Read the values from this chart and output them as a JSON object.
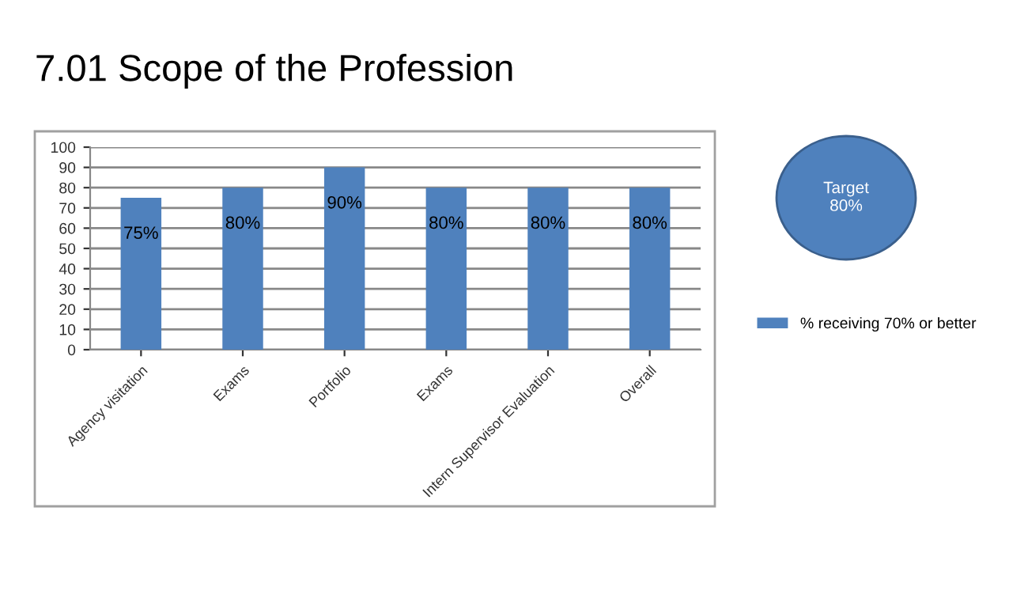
{
  "chart_data": {
    "type": "bar",
    "title": "7.01 Scope of the Profession",
    "categories": [
      "Agency visitation",
      "Exams",
      "Portfolio",
      "Exams",
      "Intern Supervisor Evaluation",
      "Overall"
    ],
    "series": [
      {
        "name": "% receiving 70% or better",
        "color": "#4f81bd",
        "values": [
          75,
          80,
          90,
          80,
          80,
          80
        ],
        "value_labels": [
          "75%",
          "80%",
          "90%",
          "80%",
          "80%",
          "80%"
        ]
      }
    ],
    "ylim": [
      0,
      100
    ],
    "yticks": [
      0,
      10,
      20,
      30,
      40,
      50,
      60,
      70,
      80,
      90,
      100
    ],
    "grid": "y",
    "legend": "right",
    "annotations": [
      "Target\n80%"
    ]
  }
}
